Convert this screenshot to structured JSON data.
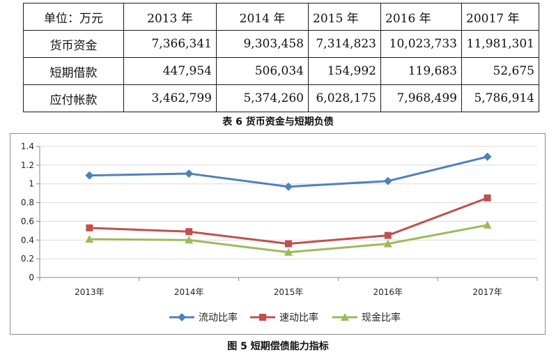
{
  "table": {
    "header": [
      "单位：万元",
      "2013 年",
      "2014 年",
      "2015 年",
      "2016 年",
      "20017 年"
    ],
    "rows": [
      {
        "label": "货币资金",
        "values": [
          "7,366,341",
          "9,303,458",
          "7,314,823",
          "10,023,733",
          "11,981,301"
        ]
      },
      {
        "label": "短期借款",
        "values": [
          "447,954",
          "506,034",
          "154,992",
          "119,683",
          "52,675"
        ]
      },
      {
        "label": "应付帐款",
        "values": [
          "3,462,799",
          "5,374,260",
          "6,028,175",
          "7,968,499",
          "5,786,914"
        ]
      }
    ],
    "caption": "表 6 货币资金与短期负债"
  },
  "figure_caption": "图 5 短期偿债能力指标",
  "chart_data": {
    "type": "line",
    "categories": [
      "2013年",
      "2014年",
      "2015年",
      "2016年",
      "2017年"
    ],
    "series": [
      {
        "name": "流动比率",
        "values": [
          1.09,
          1.11,
          0.97,
          1.03,
          1.29
        ],
        "color": "#4F81BD",
        "marker": "diamond"
      },
      {
        "name": "速动比率",
        "values": [
          0.53,
          0.49,
          0.36,
          0.45,
          0.85
        ],
        "color": "#C0504D",
        "marker": "square"
      },
      {
        "name": "现金比率",
        "values": [
          0.41,
          0.4,
          0.27,
          0.36,
          0.56
        ],
        "color": "#9BBB59",
        "marker": "triangle"
      }
    ],
    "ylim": [
      0,
      1.4
    ],
    "yticks": [
      "0",
      "0.2",
      "0.4",
      "0.6",
      "0.8",
      "1",
      "1.2",
      "1.4"
    ],
    "grid": true,
    "legend": "bottom"
  }
}
